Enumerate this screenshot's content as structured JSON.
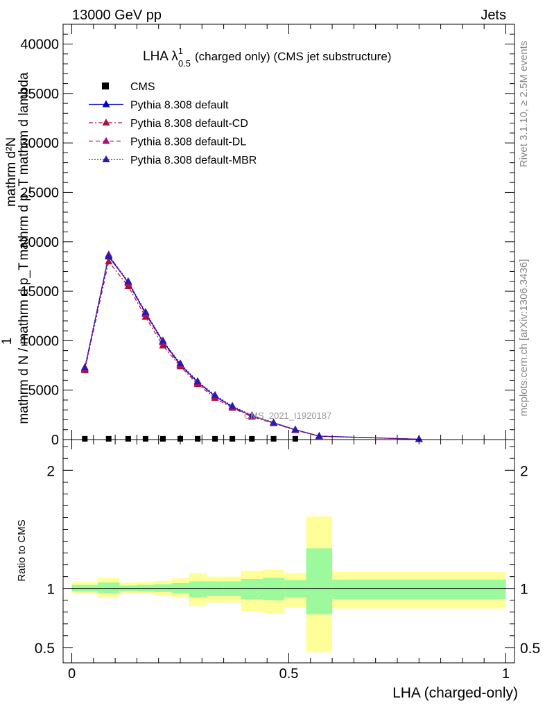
{
  "header": {
    "left": "13000 GeV pp",
    "right": "Jets"
  },
  "side_text": {
    "rivet": "Rivet 3.1.10, ≥ 2.5M events",
    "mcplots": "mcplots.cern.ch [arXiv:1306.3436]"
  },
  "watermark": "CMS_2021_I1920187",
  "chart_data": [
    {
      "type": "line",
      "title": {
        "main": "LHA λ",
        "sup": "1",
        "sub": "0.5",
        "rest": "(charged only) (CMS jet substructure)"
      },
      "ylabel_top": "mathrm d²N",
      "ylabel_top_tail": "mathrm d p_T mathrm d lambda",
      "ylabel_bottom": "mathrm d N / mathrm d p_T",
      "ylabel_one": "1",
      "ylim": [
        0,
        42000
      ],
      "xlim": [
        -0.02,
        1.02
      ],
      "y_ticks": [
        "0",
        "5000",
        "10000",
        "15000",
        "20000",
        "25000",
        "30000",
        "35000",
        "40000"
      ],
      "legend": [
        {
          "name": "CMS",
          "color": "#000000",
          "style": "square"
        },
        {
          "name": "Pythia 8.308 default",
          "color": "#0000cc",
          "style": "solid"
        },
        {
          "name": "Pythia 8.308 default-CD",
          "color": "#aa1133",
          "style": "dashdot"
        },
        {
          "name": "Pythia 8.308 default-DL",
          "color": "#aa1177",
          "style": "dashed"
        },
        {
          "name": "Pythia 8.308 default-MBR",
          "color": "#2a1ab0",
          "style": "dotted"
        }
      ],
      "cms_points": {
        "x": [
          0.03,
          0.085,
          0.13,
          0.17,
          0.21,
          0.25,
          0.29,
          0.33,
          0.37,
          0.415,
          0.465,
          0.515
        ],
        "y": [
          80,
          80,
          80,
          80,
          80,
          80,
          80,
          80,
          80,
          80,
          80,
          80
        ]
      },
      "series": [
        {
          "name": "Pythia 8.308 default",
          "x": [
            0.03,
            0.085,
            0.13,
            0.17,
            0.21,
            0.25,
            0.29,
            0.33,
            0.37,
            0.415,
            0.465,
            0.515,
            0.57,
            0.8
          ],
          "y": [
            7200,
            18500,
            15900,
            12800,
            9900,
            7600,
            5800,
            4400,
            3300,
            2400,
            1700,
            1000,
            350,
            40
          ]
        },
        {
          "name": "Pythia 8.308 default-CD",
          "x": [
            0.03,
            0.085,
            0.13,
            0.17,
            0.21,
            0.25,
            0.29,
            0.33,
            0.37,
            0.415,
            0.465,
            0.515,
            0.57,
            0.8
          ],
          "y": [
            7000,
            18000,
            15500,
            12400,
            9500,
            7400,
            5600,
            4200,
            3200,
            2300,
            1650,
            950,
            330,
            35
          ]
        },
        {
          "name": "Pythia 8.308 default-DL",
          "x": [
            0.03,
            0.085,
            0.13,
            0.17,
            0.21,
            0.25,
            0.29,
            0.33,
            0.37,
            0.415,
            0.465,
            0.515,
            0.57,
            0.8
          ],
          "y": [
            7100,
            18700,
            15800,
            12700,
            9800,
            7500,
            5750,
            4350,
            3300,
            2400,
            1700,
            980,
            340,
            40
          ]
        },
        {
          "name": "Pythia 8.308 default-MBR",
          "x": [
            0.03,
            0.085,
            0.13,
            0.17,
            0.21,
            0.25,
            0.29,
            0.33,
            0.37,
            0.415,
            0.465,
            0.515,
            0.57,
            0.8
          ],
          "y": [
            7300,
            18600,
            16000,
            12900,
            10000,
            7700,
            5900,
            4500,
            3400,
            2450,
            1720,
            1010,
            360,
            42
          ]
        }
      ]
    },
    {
      "type": "area",
      "ylabel": "Ratio to CMS",
      "xlabel": "LHA (charged-only)",
      "ylim": [
        0.37,
        2.26
      ],
      "xlim": [
        -0.02,
        1.02
      ],
      "x_ticks": [
        {
          "value": 0,
          "label": "0"
        },
        {
          "value": 0.5,
          "label": "0.5"
        },
        {
          "value": 1,
          "label": "1"
        }
      ],
      "y_ticks": [
        {
          "value": 0.5,
          "label": "0.5"
        },
        {
          "value": 1,
          "label": "1"
        },
        {
          "value": 2,
          "label": "2"
        }
      ],
      "reference": 1,
      "bins": [
        {
          "lo": 0.0,
          "hi": 0.06,
          "in_lo": 0.975,
          "in_hi": 1.03,
          "out_lo": 0.955,
          "out_hi": 1.055
        },
        {
          "lo": 0.06,
          "hi": 0.11,
          "in_lo": 0.96,
          "in_hi": 1.05,
          "out_lo": 0.925,
          "out_hi": 1.09
        },
        {
          "lo": 0.11,
          "hi": 0.15,
          "in_lo": 0.98,
          "in_hi": 1.025,
          "out_lo": 0.96,
          "out_hi": 1.05
        },
        {
          "lo": 0.15,
          "hi": 0.19,
          "in_lo": 0.975,
          "in_hi": 1.03,
          "out_lo": 0.955,
          "out_hi": 1.055
        },
        {
          "lo": 0.19,
          "hi": 0.23,
          "in_lo": 0.97,
          "in_hi": 1.035,
          "out_lo": 0.945,
          "out_hi": 1.065
        },
        {
          "lo": 0.23,
          "hi": 0.27,
          "in_lo": 0.96,
          "in_hi": 1.045,
          "out_lo": 0.925,
          "out_hi": 1.085
        },
        {
          "lo": 0.27,
          "hi": 0.31,
          "in_lo": 0.925,
          "in_hi": 1.06,
          "out_lo": 0.85,
          "out_hi": 1.13
        },
        {
          "lo": 0.31,
          "hi": 0.35,
          "in_lo": 0.935,
          "in_hi": 1.06,
          "out_lo": 0.88,
          "out_hi": 1.1
        },
        {
          "lo": 0.35,
          "hi": 0.39,
          "in_lo": 0.935,
          "in_hi": 1.06,
          "out_lo": 0.88,
          "out_hi": 1.1
        },
        {
          "lo": 0.39,
          "hi": 0.44,
          "in_lo": 0.91,
          "in_hi": 1.08,
          "out_lo": 0.81,
          "out_hi": 1.15
        },
        {
          "lo": 0.44,
          "hi": 0.49,
          "in_lo": 0.9,
          "in_hi": 1.09,
          "out_lo": 0.79,
          "out_hi": 1.16
        },
        {
          "lo": 0.49,
          "hi": 0.54,
          "in_lo": 0.925,
          "in_hi": 1.07,
          "out_lo": 0.84,
          "out_hi": 1.13
        },
        {
          "lo": 0.54,
          "hi": 0.6,
          "in_lo": 0.78,
          "in_hi": 1.34,
          "out_lo": 0.46,
          "out_hi": 1.61
        },
        {
          "lo": 0.6,
          "hi": 1.0,
          "in_lo": 0.91,
          "in_hi": 1.075,
          "out_lo": 0.83,
          "out_hi": 1.14
        }
      ],
      "band_colors": {
        "inner": "#9cfa9c",
        "outer": "#ffff99"
      }
    }
  ]
}
